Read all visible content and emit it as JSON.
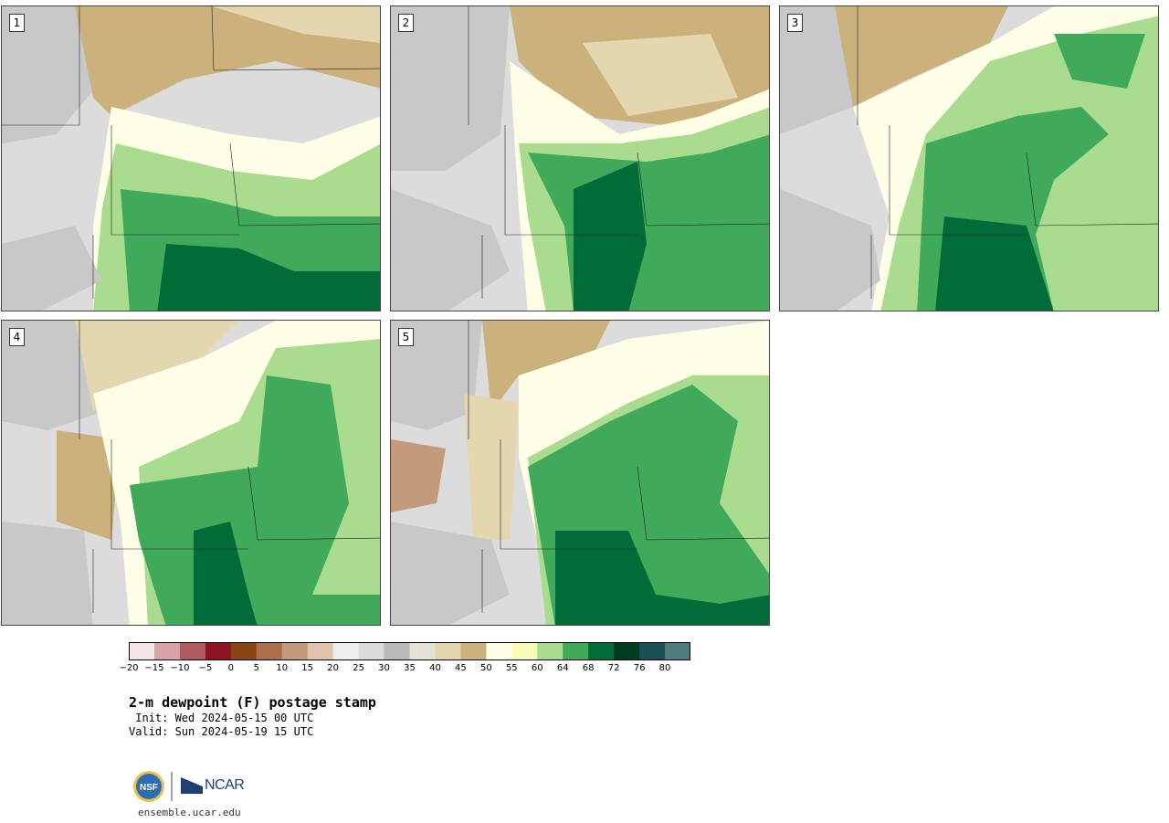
{
  "panels": [
    {
      "label": "1"
    },
    {
      "label": "2"
    },
    {
      "label": "3"
    },
    {
      "label": "4"
    },
    {
      "label": "5"
    }
  ],
  "colorbar": {
    "ticks": [
      "−20",
      "−15",
      "−10",
      "−5",
      "0",
      "5",
      "10",
      "15",
      "20",
      "25",
      "30",
      "35",
      "40",
      "45",
      "50",
      "55",
      "60",
      "64",
      "68",
      "72",
      "76",
      "80"
    ],
    "colors": [
      "#f4e6e7",
      "#d8a4aa",
      "#b05a62",
      "#8b1420",
      "#8b4513",
      "#a9704a",
      "#c49a7d",
      "#e2c3ae",
      "#efefef",
      "#dcdcdc",
      "#b9b9b9",
      "#e6e3d6",
      "#e4d6ae",
      "#cbb27c",
      "#ffffe8",
      "#f8fcb4",
      "#a9dc8e",
      "#40a95a",
      "#006b36",
      "#003c1f",
      "#1a4f54",
      "#4f7a7e"
    ]
  },
  "title": "2-m dewpoint (F) postage stamp",
  "init": " Init: Wed 2024-05-15 00 UTC",
  "valid": "Valid: Sun 2024-05-19 15 UTC",
  "logos": {
    "nsf": "NSF",
    "ncar": "NCAR"
  },
  "url": "ensemble.ucar.edu"
}
